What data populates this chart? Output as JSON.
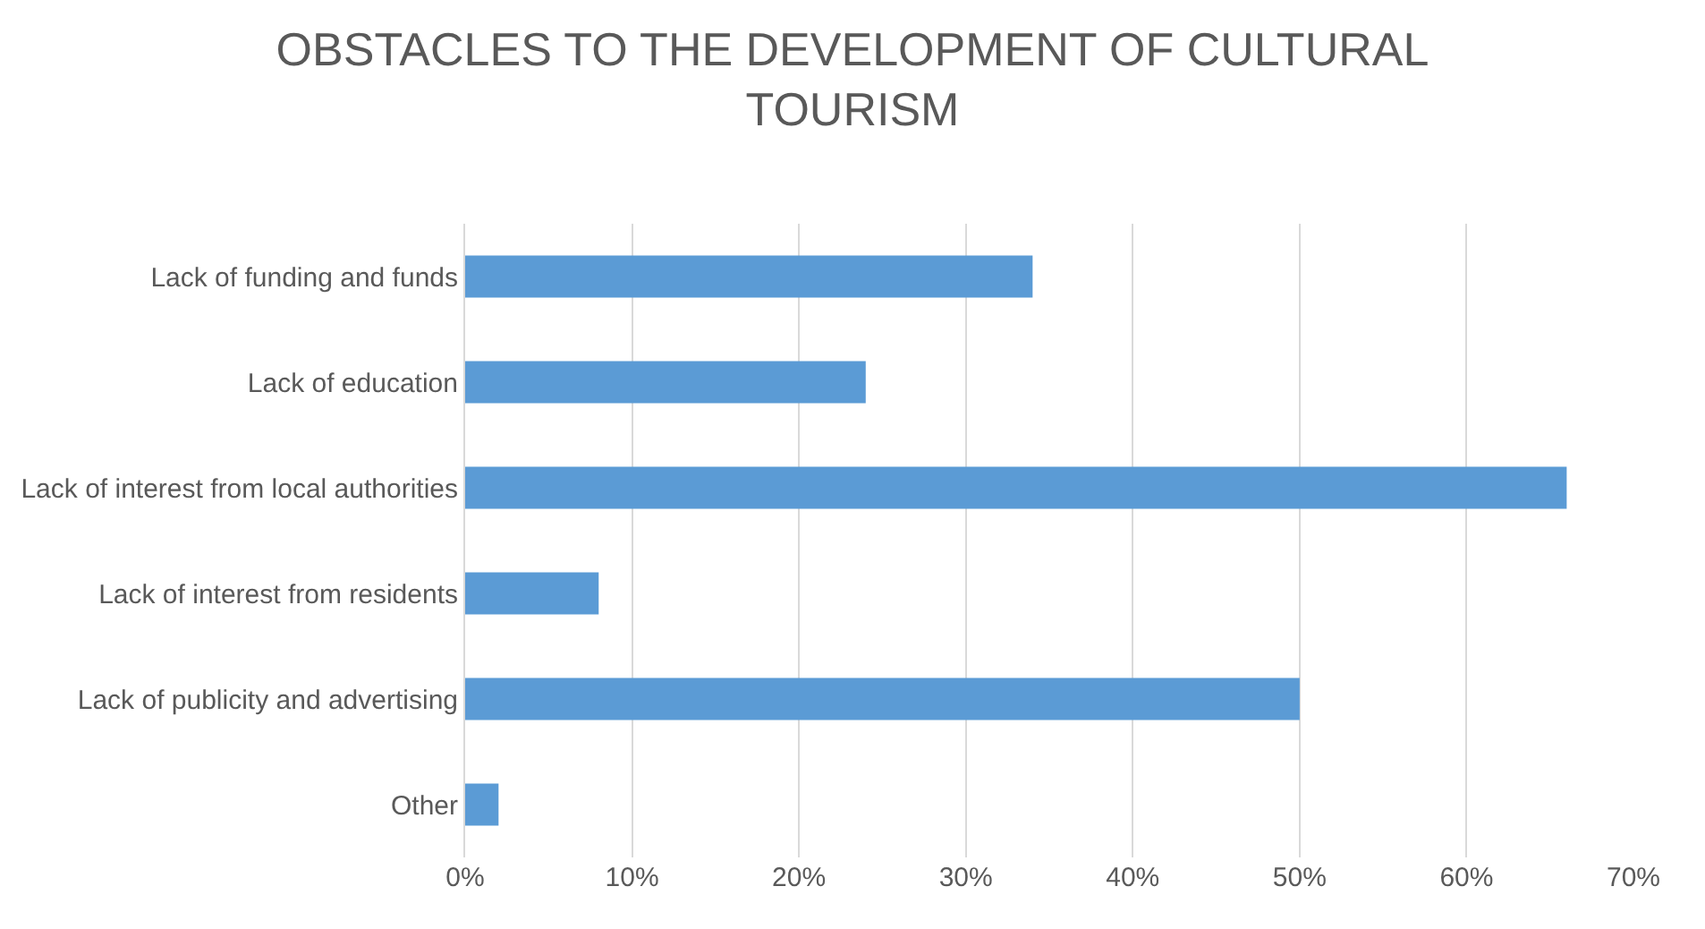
{
  "chart_data": {
    "type": "bar",
    "orientation": "horizontal",
    "title": "OBSTACLES TO THE DEVELOPMENT OF CULTURAL TOURISM",
    "categories": [
      "Lack of funding and funds",
      "Lack of education",
      "Lack of interest from local authorities",
      "Lack of interest from residents",
      "Lack of publicity and advertising",
      "Other"
    ],
    "values": [
      34,
      24,
      66,
      8,
      50,
      2
    ],
    "color": "#5b9bd5",
    "xlim": [
      0,
      70
    ],
    "xticks": [
      {
        "value": 0,
        "label": "0%"
      },
      {
        "value": 10,
        "label": "10%"
      },
      {
        "value": 20,
        "label": "20%"
      },
      {
        "value": 30,
        "label": "30%"
      },
      {
        "value": 40,
        "label": "40%"
      },
      {
        "value": 50,
        "label": "50%"
      },
      {
        "value": 60,
        "label": "60%"
      },
      {
        "value": 70,
        "label": "70%"
      }
    ],
    "grid": "x",
    "legend": false
  }
}
